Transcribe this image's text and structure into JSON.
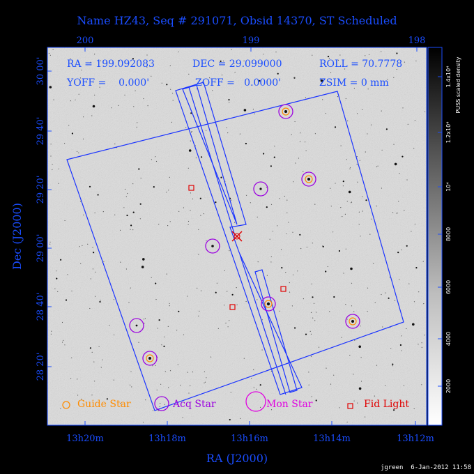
{
  "title": "Name HZ43, Seq # 291071, Obsid 14370, ST Scheduled",
  "params": {
    "ra": "RA = 199.092083",
    "dec": "DEC = 29.099000",
    "roll": "ROLL = 70.7778",
    "yoff": "YOFF =    0.000'",
    "zoff": "ZOFF =   0.0000'",
    "zsim": "ZSIM = 0 mm"
  },
  "axes": {
    "xlabel": "RA (J2000)",
    "ylabel": "Dec (J2000)",
    "bottom_ticks": [
      "13h20m",
      "13h18m",
      "13h16m",
      "13h14m",
      "13h12m"
    ],
    "top_ticks": [
      "200",
      "199",
      "198"
    ],
    "left_ticks": [
      "30 00'",
      "29 40'",
      "29 20'",
      "29 00'",
      "28 40'",
      "28 20'"
    ]
  },
  "colorbar": {
    "label": "PUSS scaled density",
    "ticks": [
      "1.4x10⁴",
      "1.2x10⁴",
      "10⁴",
      "8000",
      "6000",
      "4000",
      "2000"
    ]
  },
  "legend": {
    "guide": "Guide Star",
    "acq": "Acq Star",
    "mon": "Mon Star",
    "fid": "Fid Light"
  },
  "footer": "jgreen  6-Jan-2012 11:58",
  "colors": {
    "blue": "#1a4dff",
    "orange": "#ff8c00",
    "purple": "#9b00e0",
    "magenta": "#e000e0",
    "red": "#e00000"
  }
}
